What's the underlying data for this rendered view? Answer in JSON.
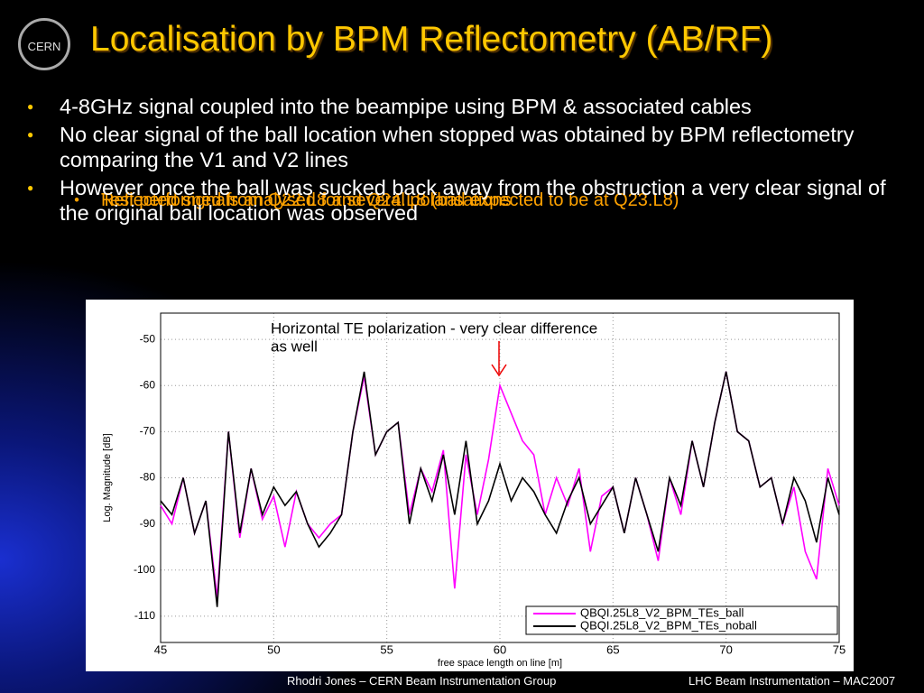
{
  "logo": "CERN",
  "title": "Localisation by BPM Reflectometry (AB/RF)",
  "bullets": [
    {
      "text": "4-8GHz signal coupled into the beampipe using BPM & associated cables",
      "sub": [
        "Reflected signals analysed for several polarisations"
      ]
    },
    {
      "text": "No clear signal of the ball location when stopped was obtained by BPM reflectometry comparing the V1 and V2 lines",
      "sub": [
        "Test performed from Q22.L8 and Q24.L8 (ball expected to be at Q23.L8)"
      ]
    },
    {
      "text": "However once the ball was sucked back away from the obstruction a very clear signal of the original ball location was observed",
      "sub": []
    }
  ],
  "footer": {
    "left": "Rhodri Jones – CERN Beam Instrumentation Group",
    "right": "LHC Beam Instrumentation – MAC2007"
  },
  "chart_data": {
    "type": "line",
    "annotation": [
      "Horizontal TE polarization - very clear difference",
      "as well"
    ],
    "x_label": "free space length on line [m]",
    "y_label": "Log. Magnitude [dB]",
    "x": [
      45,
      45.5,
      46,
      46.5,
      47,
      47.5,
      48,
      48.5,
      49,
      49.5,
      50,
      50.5,
      51,
      51.5,
      52,
      52.5,
      53,
      53.5,
      54,
      54.5,
      55,
      55.5,
      56,
      56.5,
      57,
      57.5,
      58,
      58.5,
      59,
      59.5,
      60,
      60.5,
      61,
      61.5,
      62,
      62.5,
      63,
      63.5,
      64,
      64.5,
      65,
      65.5,
      66,
      66.5,
      67,
      67.5,
      68,
      68.5,
      69,
      69.5,
      70,
      70.5,
      71,
      71.5,
      72,
      72.5,
      73,
      73.5,
      74,
      74.5,
      75
    ],
    "series": [
      {
        "name": "QBQI.25L8_V2_BPM_TEs_ball",
        "color": "#ff00ff",
        "values": [
          -86,
          -90,
          -80,
          -92,
          -85,
          -106,
          -70,
          -93,
          -78,
          -89,
          -84,
          -95,
          -83,
          -90,
          -93,
          -90,
          -88,
          -70,
          -58,
          -75,
          -70,
          -68,
          -88,
          -78,
          -83,
          -74,
          -104,
          -75,
          -88,
          -76,
          -60,
          -66,
          -72,
          -75,
          -88,
          -80,
          -86,
          -78,
          -96,
          -84,
          -82,
          -92,
          -80,
          -88,
          -98,
          -80,
          -88,
          -72,
          -82,
          -68,
          -57,
          -70,
          -72,
          -82,
          -80,
          -90,
          -82,
          -96,
          -102,
          -78,
          -86
        ]
      },
      {
        "name": "QBQI.25L8_V2_BPM_TEs_noball",
        "color": "#000000",
        "values": [
          -85,
          -88,
          -80,
          -92,
          -85,
          -108,
          -70,
          -92,
          -78,
          -88,
          -82,
          -86,
          -83,
          -90,
          -95,
          -92,
          -88,
          -70,
          -57,
          -75,
          -70,
          -68,
          -90,
          -78,
          -85,
          -75,
          -88,
          -72,
          -90,
          -85,
          -77,
          -85,
          -80,
          -83,
          -88,
          -92,
          -85,
          -80,
          -90,
          -86,
          -82,
          -92,
          -80,
          -88,
          -96,
          -80,
          -86,
          -72,
          -82,
          -68,
          -57,
          -70,
          -72,
          -82,
          -80,
          -90,
          -80,
          -85,
          -94,
          -80,
          -88
        ]
      }
    ],
    "xlim": [
      45,
      75
    ],
    "ylim": [
      -115.7,
      -44.3
    ],
    "xticks": [
      45,
      50,
      55,
      60,
      65,
      70,
      75
    ],
    "yticks": [
      -110,
      -100,
      -90,
      -80,
      -70,
      -60,
      -50
    ],
    "grid": true,
    "legend": "lower right"
  }
}
